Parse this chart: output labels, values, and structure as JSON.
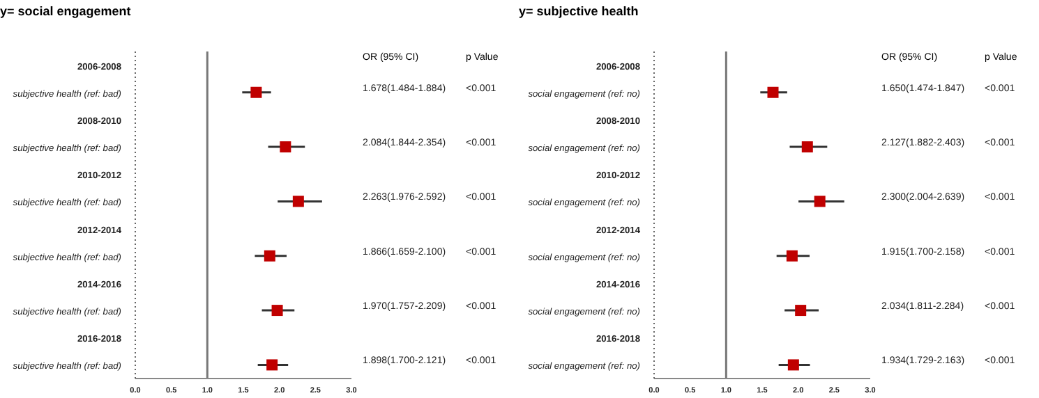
{
  "chart_data": [
    {
      "type": "scatter",
      "orientation": "horizontal",
      "title": "y= social engagement",
      "marker": "square",
      "grid": false,
      "categories": [
        "2006-2008",
        "subjective health (ref: bad)",
        "2008-2010",
        "subjective health (ref: bad)",
        "2010-2012",
        "subjective health (ref: bad)",
        "2012-2014",
        "subjective health (ref: bad)",
        "2014-2016",
        "subjective health (ref: bad)",
        "2016-2018",
        "subjective health (ref: bad)"
      ],
      "series": [
        {
          "color": "#c00000",
          "values": [
            null,
            1.678,
            null,
            2.084,
            null,
            2.263,
            null,
            1.866,
            null,
            1.97,
            null,
            1.898
          ],
          "errors": [
            null,
            [
              1.484,
              1.884
            ],
            null,
            [
              1.844,
              2.354
            ],
            null,
            [
              1.976,
              2.592
            ],
            null,
            [
              1.659,
              2.1
            ],
            null,
            [
              1.757,
              2.209
            ],
            null,
            [
              1.7,
              2.121
            ]
          ],
          "value_labels": [
            null,
            "1.678(1.484-1.884)",
            null,
            "2.084(1.844-2.354)",
            null,
            "2.263(1.976-2.592)",
            null,
            "1.866(1.659-2.100)",
            null,
            "1.970(1.757-2.209)",
            null,
            "1.898(1.700-2.121)"
          ]
        }
      ],
      "xlim": [
        0,
        3
      ],
      "xticks": [
        {
          "value": 0,
          "label": "0.0"
        },
        {
          "value": 0.5,
          "label": "0.5"
        },
        {
          "value": 1,
          "label": "1.0"
        },
        {
          "value": 1.5,
          "label": "1.5"
        },
        {
          "value": 2,
          "label": "2.0"
        },
        {
          "value": 2.5,
          "label": "2.5"
        },
        {
          "value": 3,
          "label": "3.0"
        }
      ],
      "ref_lines": [
        {
          "axis": "x",
          "value": 1
        }
      ],
      "annotations": [
        "OR (95% CI)",
        "p Value",
        "<0.001",
        "<0.001",
        "<0.001",
        "<0.001",
        "<0.001",
        "<0.001"
      ]
    },
    {
      "type": "scatter",
      "orientation": "horizontal",
      "title": "y= subjective health",
      "marker": "square",
      "grid": false,
      "categories": [
        "2006-2008",
        "social engagement (ref: no)",
        "2008-2010",
        "social engagement (ref: no)",
        "2010-2012",
        "social engagement (ref: no)",
        "2012-2014",
        "social engagement (ref: no)",
        "2014-2016",
        "social engagement (ref: no)",
        "2016-2018",
        "social engagement (ref: no)"
      ],
      "series": [
        {
          "color": "#c00000",
          "values": [
            null,
            1.65,
            null,
            2.127,
            null,
            2.3,
            null,
            1.915,
            null,
            2.034,
            null,
            1.934
          ],
          "errors": [
            null,
            [
              1.474,
              1.847
            ],
            null,
            [
              1.882,
              2.403
            ],
            null,
            [
              2.004,
              2.639
            ],
            null,
            [
              1.7,
              2.158
            ],
            null,
            [
              1.811,
              2.284
            ],
            null,
            [
              1.729,
              2.163
            ]
          ],
          "value_labels": [
            null,
            "1.650(1.474-1.847)",
            null,
            "2.127(1.882-2.403)",
            null,
            "2.300(2.004-2.639)",
            null,
            "1.915(1.700-2.158)",
            null,
            "2.034(1.811-2.284)",
            null,
            "1.934(1.729-2.163)"
          ]
        }
      ],
      "xlim": [
        0,
        3
      ],
      "xticks": [
        {
          "value": 0,
          "label": "0.0"
        },
        {
          "value": 0.5,
          "label": "0.5"
        },
        {
          "value": 1,
          "label": "1.0"
        },
        {
          "value": 1.5,
          "label": "1.5"
        },
        {
          "value": 2,
          "label": "2.0"
        },
        {
          "value": 2.5,
          "label": "2.5"
        },
        {
          "value": 3,
          "label": "3.0"
        }
      ],
      "ref_lines": [
        {
          "axis": "x",
          "value": 1
        }
      ],
      "annotations": [
        "OR (95% CI)",
        "p Value",
        "<0.001",
        "<0.001",
        "<0.001",
        "<0.001",
        "<0.001",
        "<0.001"
      ]
    }
  ]
}
